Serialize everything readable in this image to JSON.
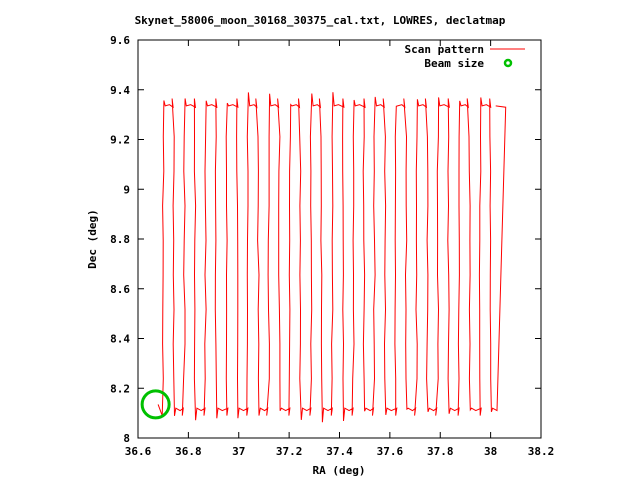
{
  "chart_data": {
    "type": "line",
    "title": "Skynet_58006_moon_30168_30375_cal.txt, LOWRES, declatmap",
    "xlabel": "RA (deg)",
    "ylabel": "Dec (deg)",
    "xlim": [
      36.6,
      38.2
    ],
    "ylim": [
      8.0,
      9.6
    ],
    "xticks": [
      "36.6",
      "36.8",
      "37",
      "37.2",
      "37.4",
      "37.6",
      "37.8",
      "38",
      "38.2"
    ],
    "yticks": [
      "8",
      "8.2",
      "8.4",
      "8.6",
      "8.8",
      "9",
      "9.2",
      "9.4",
      "9.6"
    ],
    "legend_position": "top-right",
    "grid": false,
    "series": [
      {
        "name": "Scan pattern",
        "color": "#ff0000",
        "scan_ra_start": 36.7,
        "scan_ra_end": 38.0,
        "scan_lines": 32,
        "dec_low": 8.1,
        "dec_high": 9.35
      },
      {
        "name": "Beam size",
        "color": "#00c000",
        "center_ra": 36.67,
        "center_dec": 8.135
      }
    ]
  }
}
